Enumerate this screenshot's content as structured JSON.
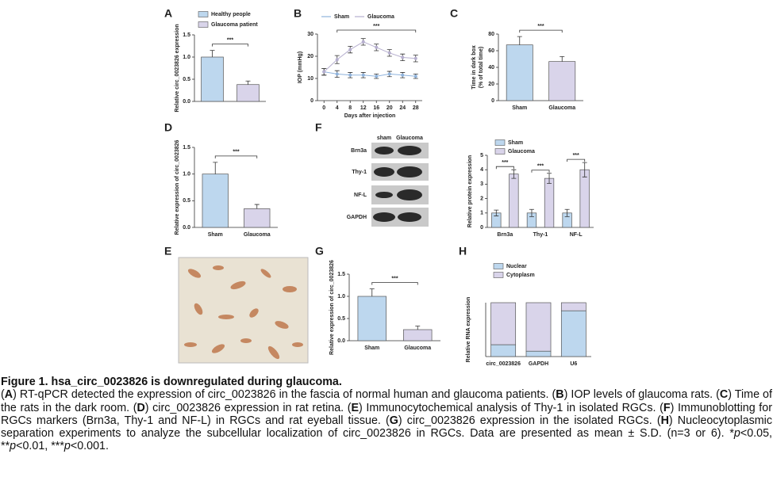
{
  "chart_data": [
    {
      "type": "bar",
      "label": "A",
      "categories": [
        "Healthy people",
        "Glaucoma patient"
      ],
      "values": [
        1.0,
        0.38
      ],
      "errors": [
        0.15,
        0.08
      ],
      "colors": [
        "#bdd7ee",
        "#d9d4ea"
      ],
      "legend": "top",
      "ylim": [
        0,
        1.5
      ],
      "yticks": [
        {
          "value": 0,
          "label": "0.0"
        },
        {
          "value": 0.5,
          "label": "0.5"
        },
        {
          "value": 1,
          "label": "1.0"
        },
        {
          "value": 1.5,
          "label": "1.5"
        }
      ],
      "ylabel": [
        "Relative circ_0023826 expression"
      ],
      "annotation": "***"
    },
    {
      "type": "line",
      "label": "B",
      "x": [
        0,
        4,
        8,
        12,
        16,
        20,
        24,
        28
      ],
      "xlim": [
        -2,
        30
      ],
      "xticks": [
        0,
        4,
        8,
        12,
        16,
        20,
        24,
        28
      ],
      "series": [
        {
          "name": "Sham",
          "color": "#8fb3dc",
          "values": [
            13,
            12,
            11.5,
            11.5,
            11,
            12,
            11.5,
            11
          ],
          "errors": [
            1.5,
            1.5,
            1.2,
            1.2,
            1,
            1.2,
            1.2,
            1
          ]
        },
        {
          "name": "Glaucoma",
          "color": "#b6afcf",
          "values": [
            13,
            18.5,
            23,
            26.5,
            24,
            21.5,
            19.5,
            19
          ],
          "errors": [
            1.5,
            1.8,
            1.5,
            1.5,
            1.5,
            1.5,
            1.5,
            1.5
          ]
        }
      ],
      "ylim": [
        0,
        30
      ],
      "yticks": [
        0,
        10,
        20,
        30
      ],
      "xlabel": "Days after injection",
      "ylabel": [
        "IOP (mmHg)"
      ],
      "annotation": "***"
    },
    {
      "type": "bar",
      "label": "C",
      "categories": [
        "Sham",
        "Glaucoma"
      ],
      "values": [
        67,
        47
      ],
      "errors": [
        10,
        6
      ],
      "colors": [
        "#bdd7ee",
        "#d9d4ea"
      ],
      "ylim": [
        0,
        80
      ],
      "yticks": [
        0,
        20,
        40,
        60,
        80
      ],
      "ylabel": [
        "Time in dark box",
        "(% of total time)"
      ],
      "annotation": "***"
    },
    {
      "type": "bar",
      "label": "D",
      "categories": [
        "Sham",
        "Glaucoma"
      ],
      "values": [
        1.0,
        0.35
      ],
      "errors": [
        0.22,
        0.08
      ],
      "colors": [
        "#bdd7ee",
        "#d9d4ea"
      ],
      "ylim": [
        0,
        1.5
      ],
      "yticks": [
        {
          "value": 0,
          "label": "0.0"
        },
        {
          "value": 0.5,
          "label": "0.5"
        },
        {
          "value": 1,
          "label": "1.0"
        },
        {
          "value": 1.5,
          "label": "1.5"
        }
      ],
      "ylabel": [
        "Relative expression of circ_0023826"
      ],
      "annotation": "***"
    },
    {
      "type": "grouped",
      "label": "F",
      "categories": [
        "Brn3a",
        "Thy-1",
        "NF-L"
      ],
      "series": [
        {
          "name": "Sham",
          "color": "#bdd7ee",
          "values": [
            1,
            1,
            1
          ],
          "errors": [
            0.2,
            0.25,
            0.25
          ]
        },
        {
          "name": "Glaucoma",
          "color": "#d9d4ea",
          "values": [
            3.7,
            3.4,
            4.0
          ],
          "errors": [
            0.3,
            0.35,
            0.5
          ]
        }
      ],
      "ylim": [
        0,
        5
      ],
      "yticks": [
        0,
        1,
        2,
        3,
        4,
        5
      ],
      "ylabel": [
        "Relative protein expression"
      ],
      "annotations": [
        "***",
        "***",
        "***"
      ]
    },
    {
      "type": "bar",
      "label": "G",
      "categories": [
        "Sham",
        "Glaucoma"
      ],
      "values": [
        1.0,
        0.25
      ],
      "errors": [
        0.17,
        0.08
      ],
      "colors": [
        "#bdd7ee",
        "#d9d4ea"
      ],
      "ylim": [
        0,
        1.5
      ],
      "yticks": [
        {
          "value": 0,
          "label": "0.0"
        },
        {
          "value": 0.5,
          "label": "0.5"
        },
        {
          "value": 1,
          "label": "1.0"
        },
        {
          "value": 1.5,
          "label": "1.5"
        }
      ],
      "ylabel": [
        "Relative expression of circ_0023826"
      ],
      "annotation": "***"
    },
    {
      "type": "stacked",
      "label": "H",
      "categories": [
        "circ_0023826",
        "GAPDH",
        "U6"
      ],
      "series": [
        {
          "name": "Nuclear",
          "color": "#bdd7ee",
          "values": [
            0.22,
            0.1,
            0.85
          ]
        },
        {
          "name": "Cytoplasm",
          "color": "#d9d4ea",
          "values": [
            0.78,
            0.9,
            0.15
          ]
        }
      ],
      "ylim": [
        0,
        1
      ],
      "ylabel": [
        "Relative RNA expression"
      ]
    }
  ],
  "micrograph": {
    "label": "E"
  },
  "blot": {
    "columns": [
      "sham",
      "Glaucoma"
    ],
    "rows": [
      "Brn3a",
      "Thy-1",
      "NF-L",
      "GAPDH"
    ]
  },
  "caption": {
    "title": "Figure 1. hsa_circ_0023826 is downregulated during glaucoma.",
    "body": [
      "(",
      "A",
      ") RT-qPCR detected the expression of circ_0023826 in the fascia of normal human and glaucoma patients. (",
      "B",
      ") IOP levels of glaucoma rats. (",
      "C",
      ") Time of the rats in the dark room. (",
      "D",
      ") circ_0023826 expression in rat retina. (",
      "E",
      ") Immunocytochemical analysis of Thy-1 in isolated RGCs. (",
      "F",
      ") Immunoblotting for RGCs markers (Brn3a, Thy-1 and NF-L) in RGCs and rat eyeball tissue. (",
      "G",
      ") circ_0023826 expression in the isolated RGCs. (",
      "H",
      ") Nucleocytoplasmic separation experiments to analyze the subcellular localization of circ_0023826 in RGCs. Data are presented as mean ± S.D. (n=3 or 6). *",
      "p",
      "<0.05, **",
      "p",
      "<0.01, ***",
      "p",
      "<0.001."
    ]
  }
}
